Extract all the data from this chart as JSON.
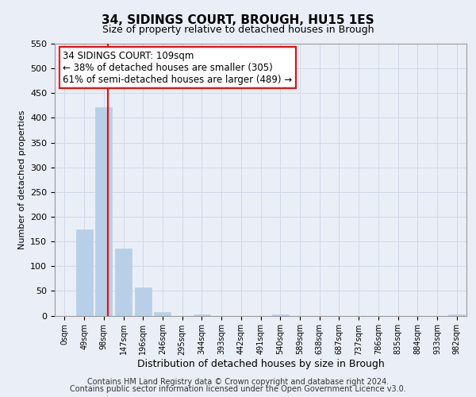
{
  "title": "34, SIDINGS COURT, BROUGH, HU15 1ES",
  "subtitle": "Size of property relative to detached houses in Brough",
  "xlabel": "Distribution of detached houses by size in Brough",
  "ylabel": "Number of detached properties",
  "footer_lines": [
    "Contains HM Land Registry data © Crown copyright and database right 2024.",
    "Contains public sector information licensed under the Open Government Licence v3.0."
  ],
  "bin_labels": [
    "0sqm",
    "49sqm",
    "98sqm",
    "147sqm",
    "196sqm",
    "246sqm",
    "295sqm",
    "344sqm",
    "393sqm",
    "442sqm",
    "491sqm",
    "540sqm",
    "589sqm",
    "638sqm",
    "687sqm",
    "737sqm",
    "786sqm",
    "835sqm",
    "884sqm",
    "933sqm",
    "982sqm"
  ],
  "bar_values": [
    0,
    175,
    422,
    135,
    57,
    7,
    0,
    2,
    0,
    0,
    0,
    2,
    0,
    0,
    0,
    0,
    0,
    0,
    0,
    0,
    2
  ],
  "bar_color": "#b8cfe8",
  "bar_edgecolor": "#b8cfe8",
  "vline_x": 2.22,
  "vline_color": "red",
  "annotation_text": "34 SIDINGS COURT: 109sqm\n← 38% of detached houses are smaller (305)\n61% of semi-detached houses are larger (489) →",
  "annotation_box_color": "white",
  "annotation_box_edgecolor": "red",
  "ylim": [
    0,
    550
  ],
  "yticks": [
    0,
    50,
    100,
    150,
    200,
    250,
    300,
    350,
    400,
    450,
    500,
    550
  ],
  "grid_color": "#d0d8e8",
  "bg_color": "#eaeff7"
}
